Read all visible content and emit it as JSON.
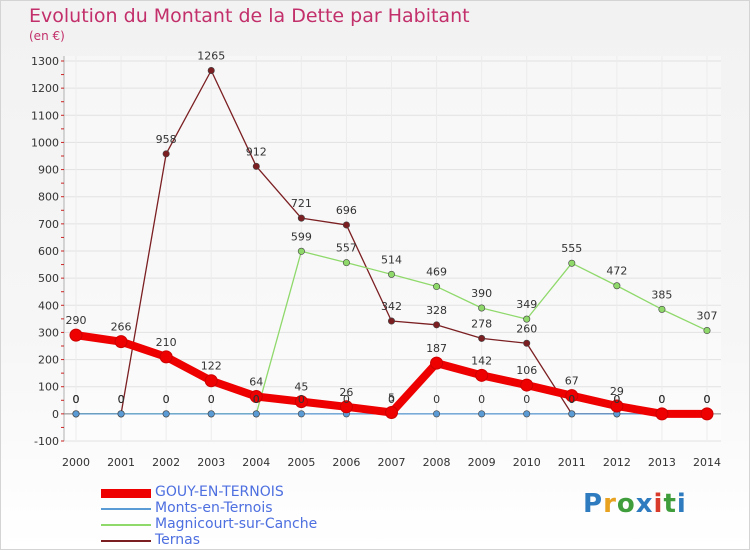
{
  "title": "Evolution du Montant de la Dette par Habitant",
  "unit": "(en €)",
  "logo": {
    "text": "Proxiti",
    "colors": [
      "#2e7bbf",
      "#e8a21f",
      "#3f9d3c",
      "#2e7bbf",
      "#d93b2b",
      "#3f9d3c",
      "#2e7bbf"
    ]
  },
  "chart_data": {
    "type": "line",
    "x": [
      "2000",
      "2001",
      "2002",
      "2003",
      "2004",
      "2005",
      "2006",
      "2007",
      "2008",
      "2009",
      "2010",
      "2011",
      "2012",
      "2013",
      "2014"
    ],
    "ylim": [
      -100,
      1300
    ],
    "yticks": [
      "-100",
      "0",
      "100",
      "200",
      "300",
      "400",
      "500",
      "600",
      "700",
      "800",
      "900",
      "1000",
      "1100",
      "1200",
      "1300"
    ],
    "grid": true,
    "legend_position": "bottom-left",
    "series": [
      {
        "name": "GOUY-EN-TERNOIS",
        "color": "#ee0000",
        "values": [
          290,
          266,
          210,
          122,
          64,
          45,
          26,
          5,
          187,
          142,
          106,
          67,
          29,
          0,
          0
        ],
        "labels": [
          "290",
          "266",
          "210",
          "122",
          "64",
          "45",
          "26",
          "5",
          "187",
          "142",
          "106",
          "67",
          "29",
          "0",
          "0"
        ]
      },
      {
        "name": "Monts-en-Ternois",
        "color": "#5b9bd5",
        "values": [
          0,
          0,
          0,
          0,
          0,
          0,
          0,
          0,
          0,
          0,
          0,
          0,
          0,
          0,
          0
        ],
        "labels": [
          "0",
          "0",
          "0",
          "0",
          "0",
          "0",
          "0",
          "0",
          "0",
          "0",
          "0",
          "0",
          "0",
          "0",
          "0"
        ]
      },
      {
        "name": "Magnicourt-sur-Canche",
        "color": "#8fd96b",
        "values": [
          0,
          0,
          0,
          0,
          0,
          599,
          557,
          514,
          469,
          390,
          349,
          555,
          472,
          385,
          307
        ],
        "labels": [
          "0",
          "0",
          "0",
          "0",
          "0",
          "599",
          "557",
          "514",
          "469",
          "390",
          "349",
          "555",
          "472",
          "385",
          "307"
        ]
      },
      {
        "name": "Ternas",
        "color": "#7b1f22",
        "values": [
          0,
          0,
          958,
          1265,
          912,
          721,
          696,
          342,
          328,
          278,
          260,
          0,
          0,
          0,
          0
        ],
        "labels": [
          "0",
          "0",
          "958",
          "1265",
          "912",
          "721",
          "696",
          "342",
          "328",
          "278",
          "260",
          "0",
          "0",
          "0",
          "0"
        ]
      }
    ]
  }
}
